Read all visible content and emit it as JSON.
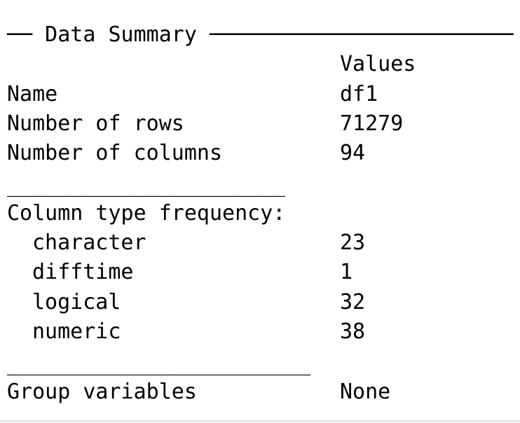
{
  "header": {
    "title": "── Data Summary ────────────────────────"
  },
  "summary": {
    "column_header": "Values",
    "rows": [
      {
        "label": "Name",
        "value": "df1"
      },
      {
        "label": "Number of rows",
        "value": "71279"
      },
      {
        "label": "Number of columns",
        "value": "94"
      }
    ]
  },
  "separator_1": "______________________",
  "column_types": {
    "title": "Column type frequency:",
    "items": [
      {
        "label": "character",
        "value": "23"
      },
      {
        "label": "difftime",
        "value": "1"
      },
      {
        "label": "logical",
        "value": "32"
      },
      {
        "label": "numeric",
        "value": "38"
      }
    ]
  },
  "separator_2": "________________________",
  "group": {
    "label": "Group variables",
    "value": "None"
  }
}
